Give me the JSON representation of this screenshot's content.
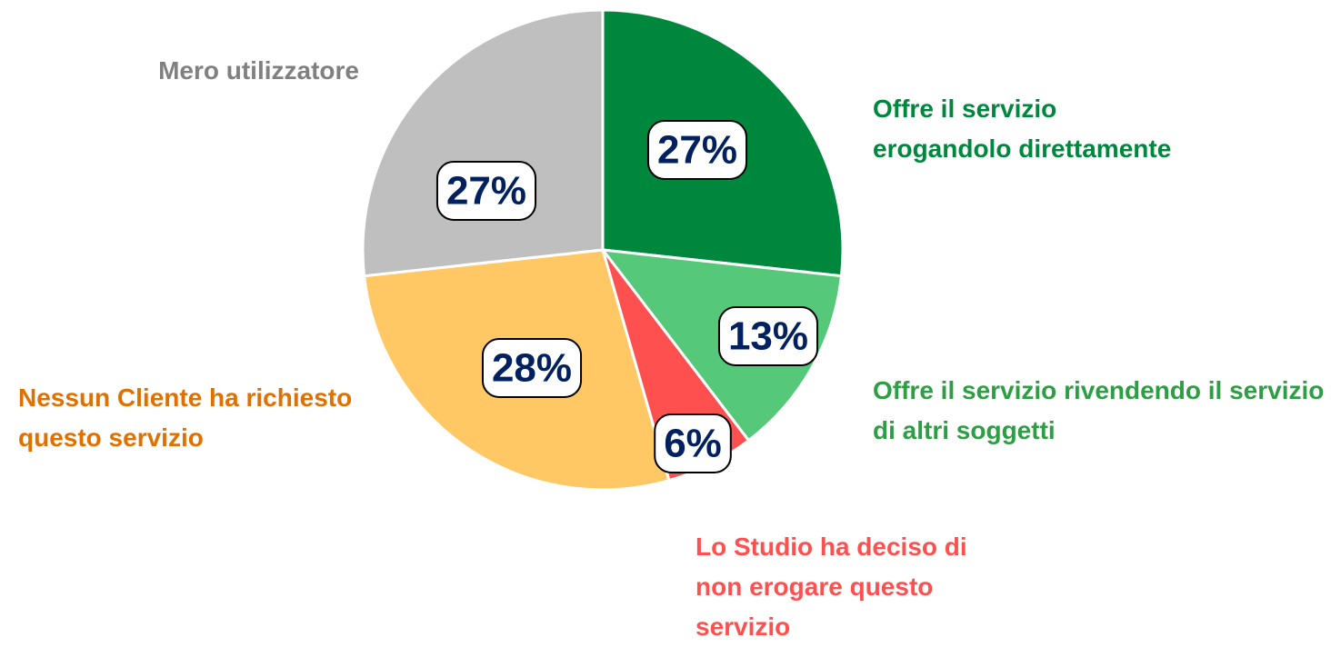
{
  "chart_data": {
    "type": "pie",
    "categories": [
      "Offre il servizio erogandolo direttamente",
      "Offre il servizio rivendendo il servizio di altri soggetti",
      "Lo Studio ha deciso di non erogare questo servizio",
      "Nessun Cliente ha richiesto questo servizio",
      "Mero utilizzatore"
    ],
    "values": [
      27,
      13,
      6,
      28,
      27
    ],
    "value_labels": [
      "27%",
      "13%",
      "6%",
      "28%",
      "27%"
    ],
    "colors": [
      "#00873e",
      "#55c87a",
      "#ff5050",
      "#ffc864",
      "#bfbfbf"
    ],
    "label_colors": [
      "#00873e",
      "#2e9e45",
      "#ff5050",
      "#e07000",
      "#808080"
    ]
  }
}
